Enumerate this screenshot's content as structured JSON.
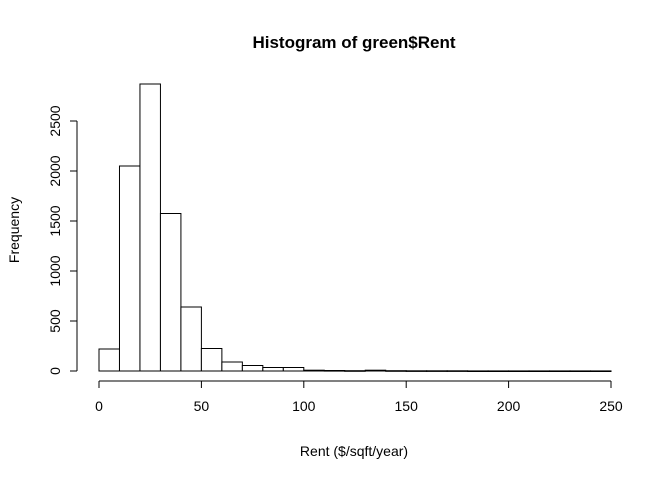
{
  "chart_data": {
    "type": "bar",
    "title": "Histogram of green$Rent",
    "xlabel": "Rent ($/sqft/year)",
    "ylabel": "Frequency",
    "xlim": [
      0,
      250
    ],
    "ylim": [
      0,
      2900
    ],
    "bin_width": 10,
    "x_ticks": [
      0,
      50,
      100,
      150,
      200,
      250
    ],
    "y_ticks": [
      0,
      500,
      1000,
      1500,
      2000,
      2500
    ],
    "bins": [
      {
        "start": 0,
        "end": 10,
        "count": 220
      },
      {
        "start": 10,
        "end": 20,
        "count": 2050
      },
      {
        "start": 20,
        "end": 30,
        "count": 2870
      },
      {
        "start": 30,
        "end": 40,
        "count": 1575
      },
      {
        "start": 40,
        "end": 50,
        "count": 640
      },
      {
        "start": 50,
        "end": 60,
        "count": 225
      },
      {
        "start": 60,
        "end": 70,
        "count": 90
      },
      {
        "start": 70,
        "end": 80,
        "count": 55
      },
      {
        "start": 80,
        "end": 90,
        "count": 35
      },
      {
        "start": 90,
        "end": 100,
        "count": 35
      },
      {
        "start": 100,
        "end": 110,
        "count": 8
      },
      {
        "start": 110,
        "end": 120,
        "count": 5
      },
      {
        "start": 120,
        "end": 130,
        "count": 3
      },
      {
        "start": 130,
        "end": 140,
        "count": 8
      },
      {
        "start": 140,
        "end": 150,
        "count": 3
      },
      {
        "start": 150,
        "end": 160,
        "count": 2
      },
      {
        "start": 160,
        "end": 170,
        "count": 2
      },
      {
        "start": 170,
        "end": 180,
        "count": 2
      },
      {
        "start": 180,
        "end": 190,
        "count": 1
      },
      {
        "start": 190,
        "end": 200,
        "count": 1
      },
      {
        "start": 200,
        "end": 210,
        "count": 1
      },
      {
        "start": 210,
        "end": 220,
        "count": 1
      },
      {
        "start": 220,
        "end": 230,
        "count": 1
      },
      {
        "start": 230,
        "end": 240,
        "count": 1
      },
      {
        "start": 240,
        "end": 250,
        "count": 1
      }
    ],
    "grid": false,
    "legend": "none",
    "bar_fill": "#ffffff",
    "bar_stroke": "#000000"
  }
}
